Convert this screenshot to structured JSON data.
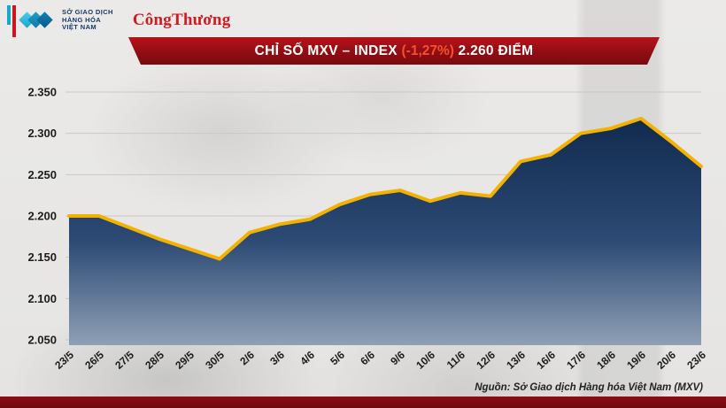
{
  "logo": {
    "org_lines": [
      "SỞ GIAO DỊCH",
      "HÀNG HÓA",
      "VIỆT NAM"
    ],
    "brand": "CôngThương"
  },
  "banner": {
    "title_prefix": "CHỈ SỐ MXV – INDEX ",
    "percent": "(-1,27%)",
    "title_suffix": " 2.260 ĐIỂM"
  },
  "source": "Nguồn: Sở Giao dịch Hàng hóa Việt Nam (MXV)",
  "colors": {
    "banner_red": "#8d0d12",
    "percent_text": "#f4512c",
    "line_gold": "#f3b200",
    "fill_top": "#10294d",
    "fill_bottom": "#8fa0b5",
    "grid_gray": "#c9c9c7",
    "bottom_bar": "#7c1013",
    "logo_teal": "#1aa6cc",
    "brand_red": "#cf1b24"
  },
  "chart_data": {
    "type": "area",
    "title": "CHỈ SỐ MXV – INDEX (-1,27%) 2.260 ĐIỂM",
    "categories": [
      "23/5",
      "26/5",
      "27/5",
      "28/5",
      "29/5",
      "30/5",
      "2/6",
      "3/6",
      "4/6",
      "5/6",
      "6/6",
      "9/6",
      "10/6",
      "11/6",
      "12/6",
      "13/6",
      "16/6",
      "17/6",
      "18/6",
      "19/6",
      "20/6",
      "23/6"
    ],
    "values": [
      2200,
      2200,
      2186,
      2172,
      2160,
      2148,
      2180,
      2190,
      2196,
      2214,
      2226,
      2231,
      2218,
      2228,
      2224,
      2266,
      2274,
      2300,
      2306,
      2318,
      2290,
      2260
    ],
    "ylim": [
      2050,
      2350
    ],
    "yticks": [
      {
        "value": 2350,
        "label": "2.350"
      },
      {
        "value": 2300,
        "label": "2.300"
      },
      {
        "value": 2250,
        "label": "2.250"
      },
      {
        "value": 2200,
        "label": "2.200"
      },
      {
        "value": 2150,
        "label": "2.150"
      },
      {
        "value": 2100,
        "label": "2.100"
      },
      {
        "value": 2050,
        "label": "2.050"
      }
    ],
    "grid": true,
    "legend": "none",
    "xlabel": "",
    "ylabel": "",
    "line_color": "#f3b200",
    "fill_top": "#10294d",
    "fill_bottom": "#8fa0b5",
    "grid_color": "#c9c9c7"
  }
}
